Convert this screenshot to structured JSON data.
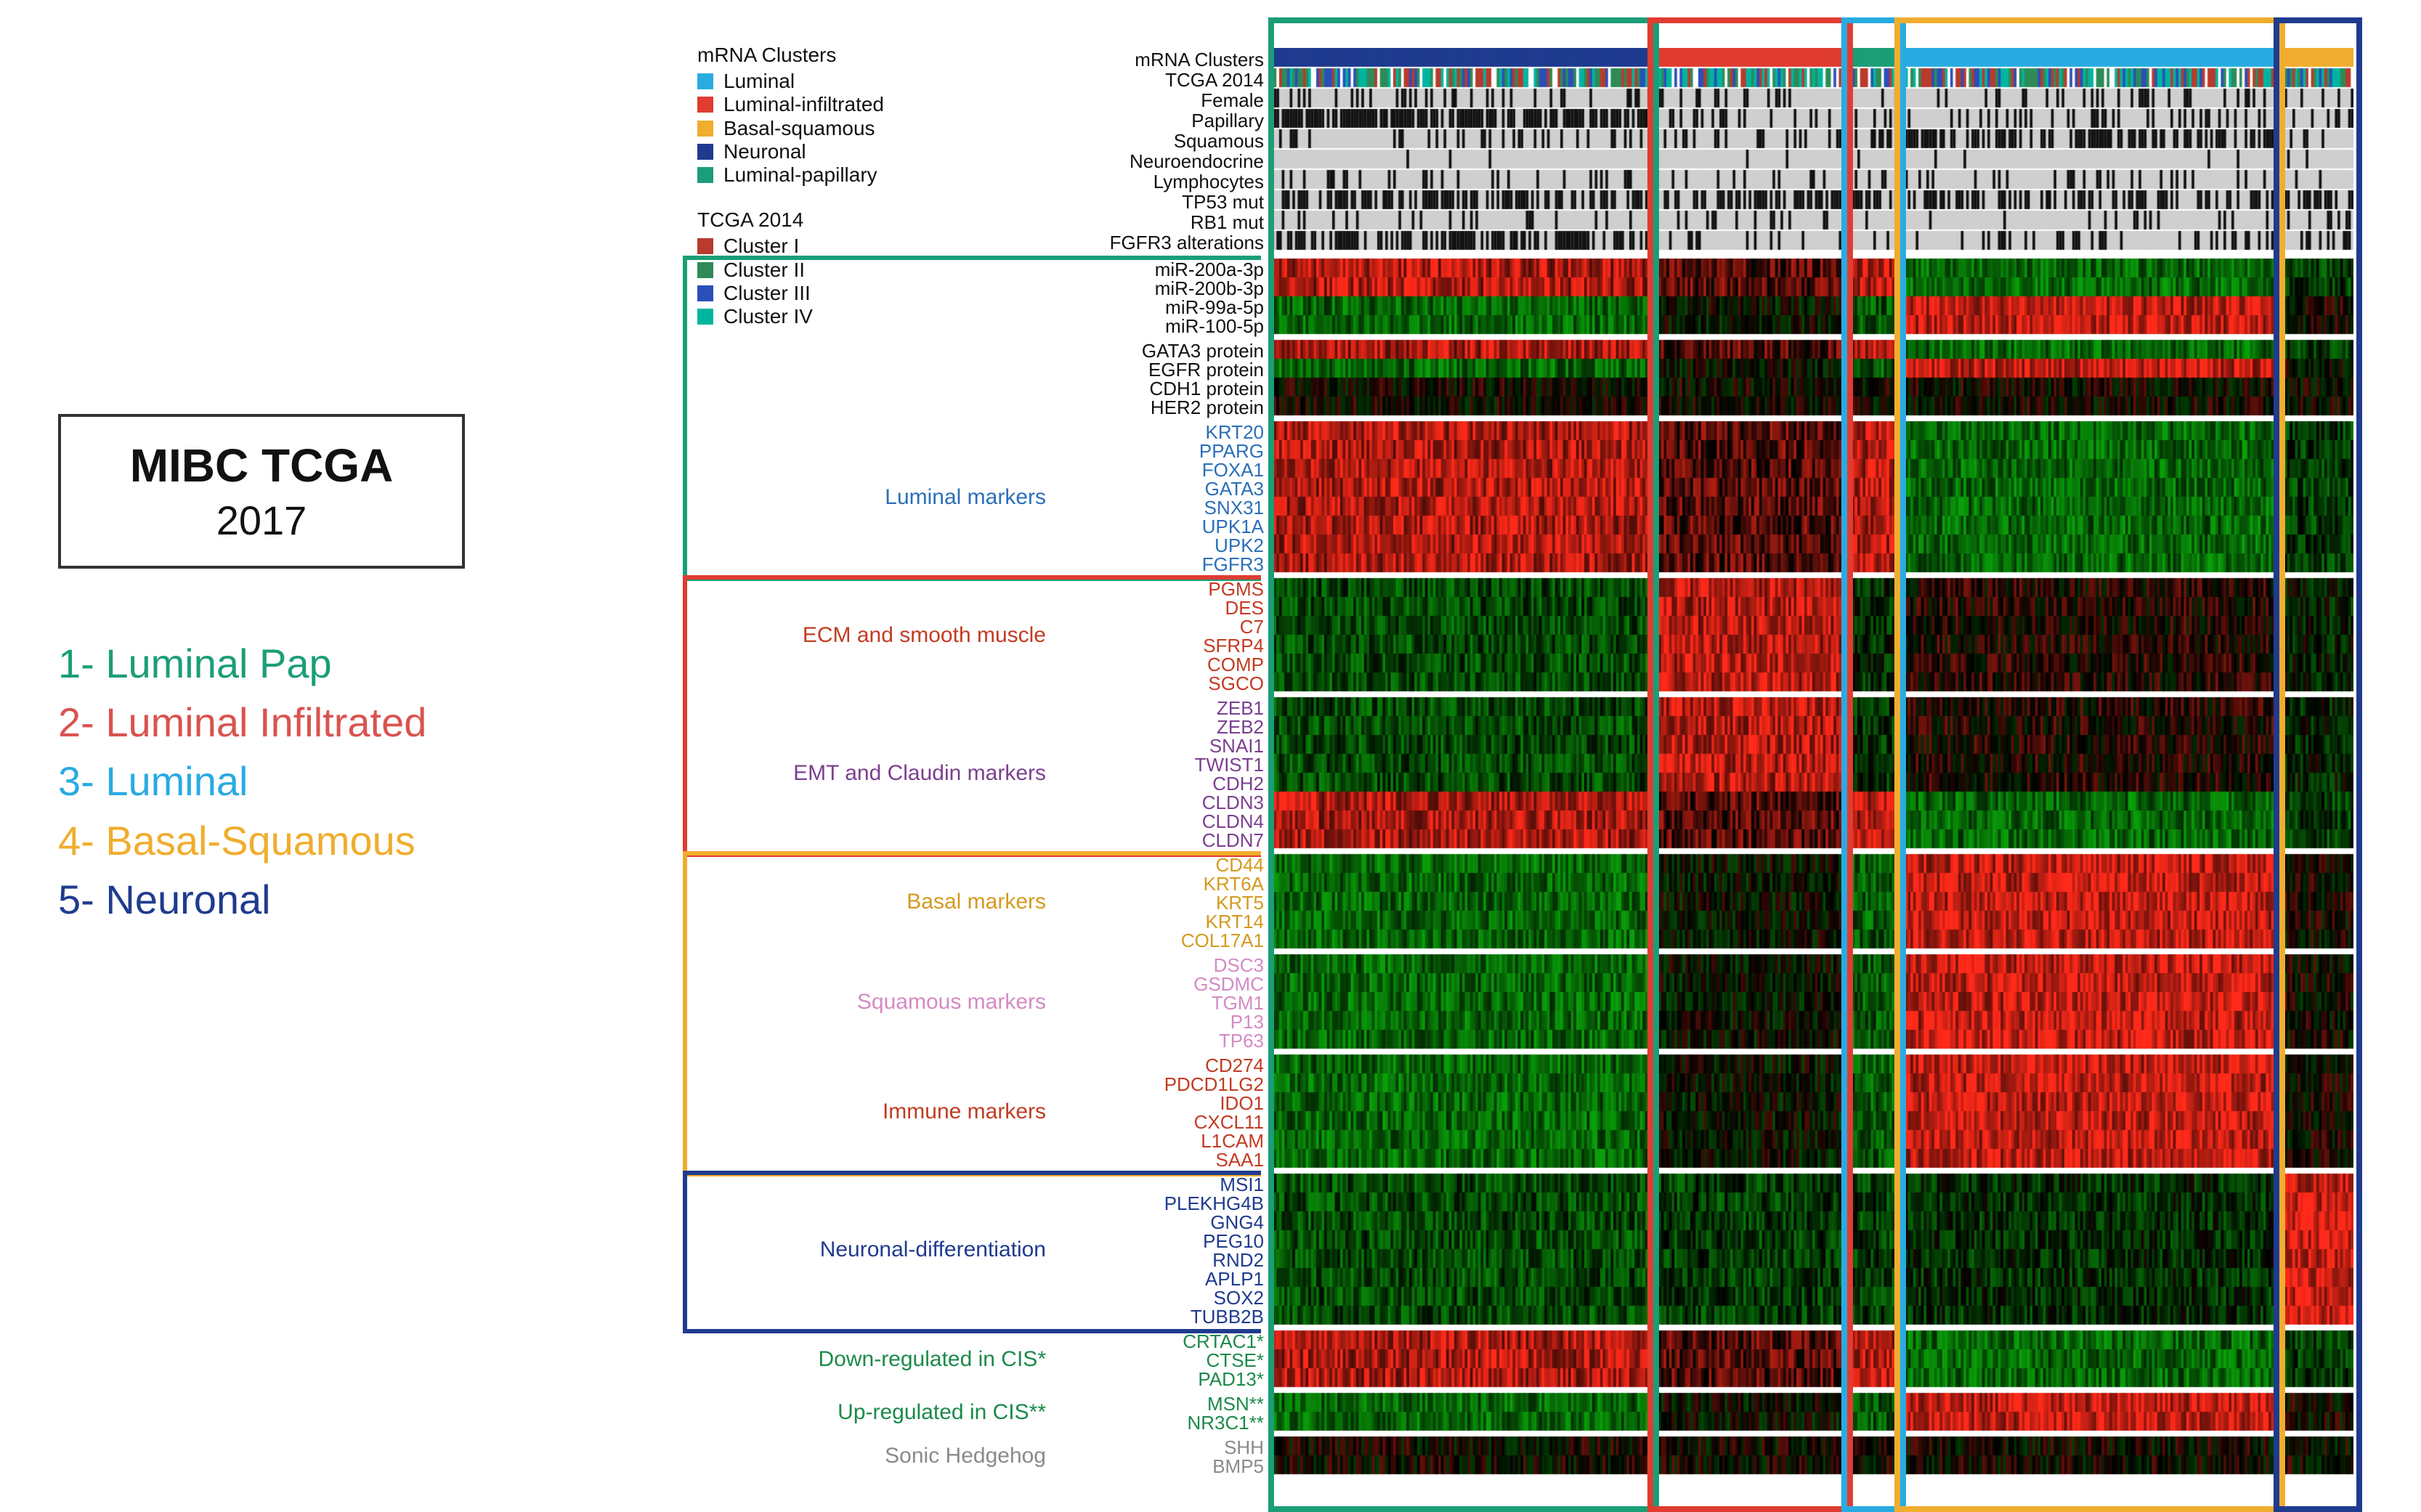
{
  "title_box": {
    "line1": "MIBC TCGA",
    "line2": "2017"
  },
  "class_list": [
    {
      "label": "1- Luminal Pap",
      "color": "#1b9e77"
    },
    {
      "label": "2- Luminal Infiltrated",
      "color": "#d9534f"
    },
    {
      "label": "3- Luminal",
      "color": "#29abe2"
    },
    {
      "label": "4- Basal-Squamous",
      "color": "#f0ad2e"
    },
    {
      "label": "5- Neuronal",
      "color": "#1f3b8f"
    }
  ],
  "legend_blocks": [
    {
      "title": "mRNA Clusters",
      "items": [
        {
          "label": "Luminal",
          "color": "#29abe2"
        },
        {
          "label": "Luminal-infiltrated",
          "color": "#e03c31"
        },
        {
          "label": "Basal-squamous",
          "color": "#f0ad2e"
        },
        {
          "label": "Neuronal",
          "color": "#1f3b8f"
        },
        {
          "label": "Luminal-papillary",
          "color": "#1b9e77"
        }
      ]
    },
    {
      "title": "TCGA 2014",
      "items": [
        {
          "label": "Cluster I",
          "color": "#b83b2d"
        },
        {
          "label": "Cluster II",
          "color": "#2e8b57"
        },
        {
          "label": "Cluster III",
          "color": "#2b4fb8"
        },
        {
          "label": "Cluster IV",
          "color": "#00b5a0"
        }
      ]
    }
  ],
  "annotation_rows": [
    {
      "name": "mRNA Clusters",
      "type": "categorical",
      "palette": [
        "#1b9e77",
        "#e03c31",
        "#29abe2",
        "#f0ad2e",
        "#1f3b8f"
      ],
      "bg": "#ffffff"
    },
    {
      "name": "TCGA 2014",
      "type": "categorical",
      "palette": [
        "#b83b2d",
        "#2e8b57",
        "#2b4fb8",
        "#00b5a0"
      ],
      "bg": "#ffffff"
    },
    {
      "name": "Female",
      "type": "binary",
      "mark": "#111",
      "bg": "#cfcfcf"
    },
    {
      "name": "Papillary",
      "type": "binary",
      "mark": "#111",
      "bg": "#cfcfcf"
    },
    {
      "name": "Squamous",
      "type": "binary",
      "mark": "#111",
      "bg": "#cfcfcf"
    },
    {
      "name": "Neuroendocrine",
      "type": "binary",
      "mark": "#111",
      "bg": "#cfcfcf"
    },
    {
      "name": "Lymphocytes",
      "type": "binary",
      "mark": "#111",
      "bg": "#cfcfcf"
    },
    {
      "name": "TP53 mut",
      "type": "binary",
      "mark": "#111",
      "bg": "#cfcfcf"
    },
    {
      "name": "RB1 mut",
      "type": "binary",
      "mark": "#111",
      "bg": "#cfcfcf"
    },
    {
      "name": "FGFR3 alterations",
      "type": "binary",
      "mark": "#111",
      "bg": "#cfcfcf"
    }
  ],
  "heatmap": {
    "n_samples": 408,
    "row_h_anno": 28,
    "row_h_gene": 26,
    "colors": {
      "low": "#0aa00a",
      "mid": "#000000",
      "high": "#ff2a1a"
    },
    "sample_clusters": [
      {
        "id": "luminal_pap",
        "frac": 0.35,
        "frame": "#1b9e77"
      },
      {
        "id": "luminal_inf",
        "frac": 0.18,
        "frame": "#e03c31"
      },
      {
        "id": "luminal",
        "frac": 0.05,
        "frame": "#29abe2"
      },
      {
        "id": "basal_sq",
        "frac": 0.35,
        "frame": "#f0ad2e"
      },
      {
        "id": "neuronal",
        "frac": 0.07,
        "frame": "#1f3b8f"
      }
    ],
    "gene_groups": [
      {
        "caption": null,
        "caption_color": null,
        "bracket": null,
        "genes": [
          {
            "name": "miR-200a-3p",
            "color": "#111",
            "profile": "lum_hi"
          },
          {
            "name": "miR-200b-3p",
            "color": "#111",
            "profile": "lum_hi"
          },
          {
            "name": "miR-99a-5p",
            "color": "#111",
            "profile": "basal_hi"
          },
          {
            "name": "miR-100-5p",
            "color": "#111",
            "profile": "basal_hi"
          }
        ]
      },
      {
        "caption": null,
        "caption_color": null,
        "bracket": null,
        "genes": [
          {
            "name": "GATA3 protein",
            "color": "#111",
            "profile": "lum_hi"
          },
          {
            "name": "EGFR protein",
            "color": "#111",
            "profile": "basal_hi"
          },
          {
            "name": "CDH1 protein",
            "color": "#111",
            "profile": "mixed"
          },
          {
            "name": "HER2 protein",
            "color": "#111",
            "profile": "mixed"
          }
        ]
      },
      {
        "caption": "Luminal markers",
        "caption_color": "#2b6fb8",
        "bracket": "#1b9e77",
        "genes": [
          {
            "name": "KRT20",
            "color": "#2b6fb8",
            "profile": "lum_hi"
          },
          {
            "name": "PPARG",
            "color": "#2b6fb8",
            "profile": "lum_hi"
          },
          {
            "name": "FOXA1",
            "color": "#2b6fb8",
            "profile": "lum_hi"
          },
          {
            "name": "GATA3",
            "color": "#2b6fb8",
            "profile": "lum_hi"
          },
          {
            "name": "SNX31",
            "color": "#2b6fb8",
            "profile": "lum_hi"
          },
          {
            "name": "UPK1A",
            "color": "#2b6fb8",
            "profile": "lum_hi"
          },
          {
            "name": "UPK2",
            "color": "#2b6fb8",
            "profile": "lum_hi"
          },
          {
            "name": "FGFR3",
            "color": "#2b6fb8",
            "profile": "lum_hi"
          }
        ]
      },
      {
        "caption": "ECM and smooth muscle",
        "caption_color": "#c23b22",
        "bracket": "#e03c31",
        "genes": [
          {
            "name": "PGMS",
            "color": "#c23b22",
            "profile": "inf_hi"
          },
          {
            "name": "DES",
            "color": "#c23b22",
            "profile": "inf_hi"
          },
          {
            "name": "C7",
            "color": "#c23b22",
            "profile": "inf_hi"
          },
          {
            "name": "SFRP4",
            "color": "#c23b22",
            "profile": "inf_hi"
          },
          {
            "name": "COMP",
            "color": "#c23b22",
            "profile": "inf_hi"
          },
          {
            "name": "SGCO",
            "color": "#c23b22",
            "profile": "inf_hi"
          }
        ]
      },
      {
        "caption": "EMT and Claudin markers",
        "caption_color": "#7b3f8f",
        "bracket": null,
        "genes": [
          {
            "name": "ZEB1",
            "color": "#7b3f8f",
            "profile": "inf_hi"
          },
          {
            "name": "ZEB2",
            "color": "#7b3f8f",
            "profile": "inf_hi"
          },
          {
            "name": "SNAI1",
            "color": "#7b3f8f",
            "profile": "inf_hi"
          },
          {
            "name": "TWIST1",
            "color": "#7b3f8f",
            "profile": "inf_hi"
          },
          {
            "name": "CDH2",
            "color": "#7b3f8f",
            "profile": "inf_hi"
          },
          {
            "name": "CLDN3",
            "color": "#7b3f8f",
            "profile": "lum_hi"
          },
          {
            "name": "CLDN4",
            "color": "#7b3f8f",
            "profile": "lum_hi"
          },
          {
            "name": "CLDN7",
            "color": "#7b3f8f",
            "profile": "lum_hi"
          }
        ]
      },
      {
        "caption": "Basal markers",
        "caption_color": "#d49a1e",
        "bracket": "#f0ad2e",
        "genes": [
          {
            "name": "CD44",
            "color": "#d49a1e",
            "profile": "basal_hi"
          },
          {
            "name": "KRT6A",
            "color": "#d49a1e",
            "profile": "basal_hi"
          },
          {
            "name": "KRT5",
            "color": "#d49a1e",
            "profile": "basal_hi"
          },
          {
            "name": "KRT14",
            "color": "#d49a1e",
            "profile": "basal_hi"
          },
          {
            "name": "COL17A1",
            "color": "#d49a1e",
            "profile": "basal_hi"
          }
        ]
      },
      {
        "caption": "Squamous markers",
        "caption_color": "#d48ac4",
        "bracket": null,
        "genes": [
          {
            "name": "DSC3",
            "color": "#d48ac4",
            "profile": "basal_hi"
          },
          {
            "name": "GSDMC",
            "color": "#d48ac4",
            "profile": "basal_hi"
          },
          {
            "name": "TGM1",
            "color": "#d48ac4",
            "profile": "basal_hi"
          },
          {
            "name": "P13",
            "color": "#d48ac4",
            "profile": "basal_hi"
          },
          {
            "name": "TP63",
            "color": "#d48ac4",
            "profile": "basal_hi"
          }
        ]
      },
      {
        "caption": "Immune markers",
        "caption_color": "#c23b22",
        "bracket": null,
        "genes": [
          {
            "name": "CD274",
            "color": "#c23b22",
            "profile": "basal_hi"
          },
          {
            "name": "PDCD1LG2",
            "color": "#c23b22",
            "profile": "basal_hi"
          },
          {
            "name": "IDO1",
            "color": "#c23b22",
            "profile": "basal_hi"
          },
          {
            "name": "CXCL11",
            "color": "#c23b22",
            "profile": "basal_hi"
          },
          {
            "name": "L1CAM",
            "color": "#c23b22",
            "profile": "basal_hi"
          },
          {
            "name": "SAA1",
            "color": "#c23b22",
            "profile": "basal_hi"
          }
        ]
      },
      {
        "caption": "Neuronal-differentiation",
        "caption_color": "#1f3b8f",
        "bracket": "#1f3b8f",
        "genes": [
          {
            "name": "MSI1",
            "color": "#1f3b8f",
            "profile": "neuro_hi"
          },
          {
            "name": "PLEKHG4B",
            "color": "#1f3b8f",
            "profile": "neuro_hi"
          },
          {
            "name": "GNG4",
            "color": "#1f3b8f",
            "profile": "neuro_hi"
          },
          {
            "name": "PEG10",
            "color": "#1f3b8f",
            "profile": "neuro_hi"
          },
          {
            "name": "RND2",
            "color": "#1f3b8f",
            "profile": "neuro_hi"
          },
          {
            "name": "APLP1",
            "color": "#1f3b8f",
            "profile": "neuro_hi"
          },
          {
            "name": "SOX2",
            "color": "#1f3b8f",
            "profile": "neuro_hi"
          },
          {
            "name": "TUBB2B",
            "color": "#1f3b8f",
            "profile": "neuro_hi"
          }
        ]
      },
      {
        "caption": "Down-regulated in CIS*",
        "caption_color": "#1b8a4a",
        "bracket": null,
        "genes": [
          {
            "name": "CRTAC1*",
            "color": "#1b8a4a",
            "profile": "lum_hi"
          },
          {
            "name": "CTSE*",
            "color": "#1b8a4a",
            "profile": "lum_hi"
          },
          {
            "name": "PAD13*",
            "color": "#1b8a4a",
            "profile": "lum_hi"
          }
        ]
      },
      {
        "caption": "Up-regulated in CIS**",
        "caption_color": "#1b8a4a",
        "bracket": null,
        "genes": [
          {
            "name": "MSN**",
            "color": "#1b8a4a",
            "profile": "basal_hi"
          },
          {
            "name": "NR3C1**",
            "color": "#1b8a4a",
            "profile": "basal_hi"
          }
        ]
      },
      {
        "caption": "Sonic Hedgehog",
        "caption_color": "#8a8a8a",
        "bracket": null,
        "genes": [
          {
            "name": "SHH",
            "color": "#8a8a8a",
            "profile": "mixed"
          },
          {
            "name": "BMP5",
            "color": "#8a8a8a",
            "profile": "mixed"
          }
        ]
      }
    ]
  }
}
